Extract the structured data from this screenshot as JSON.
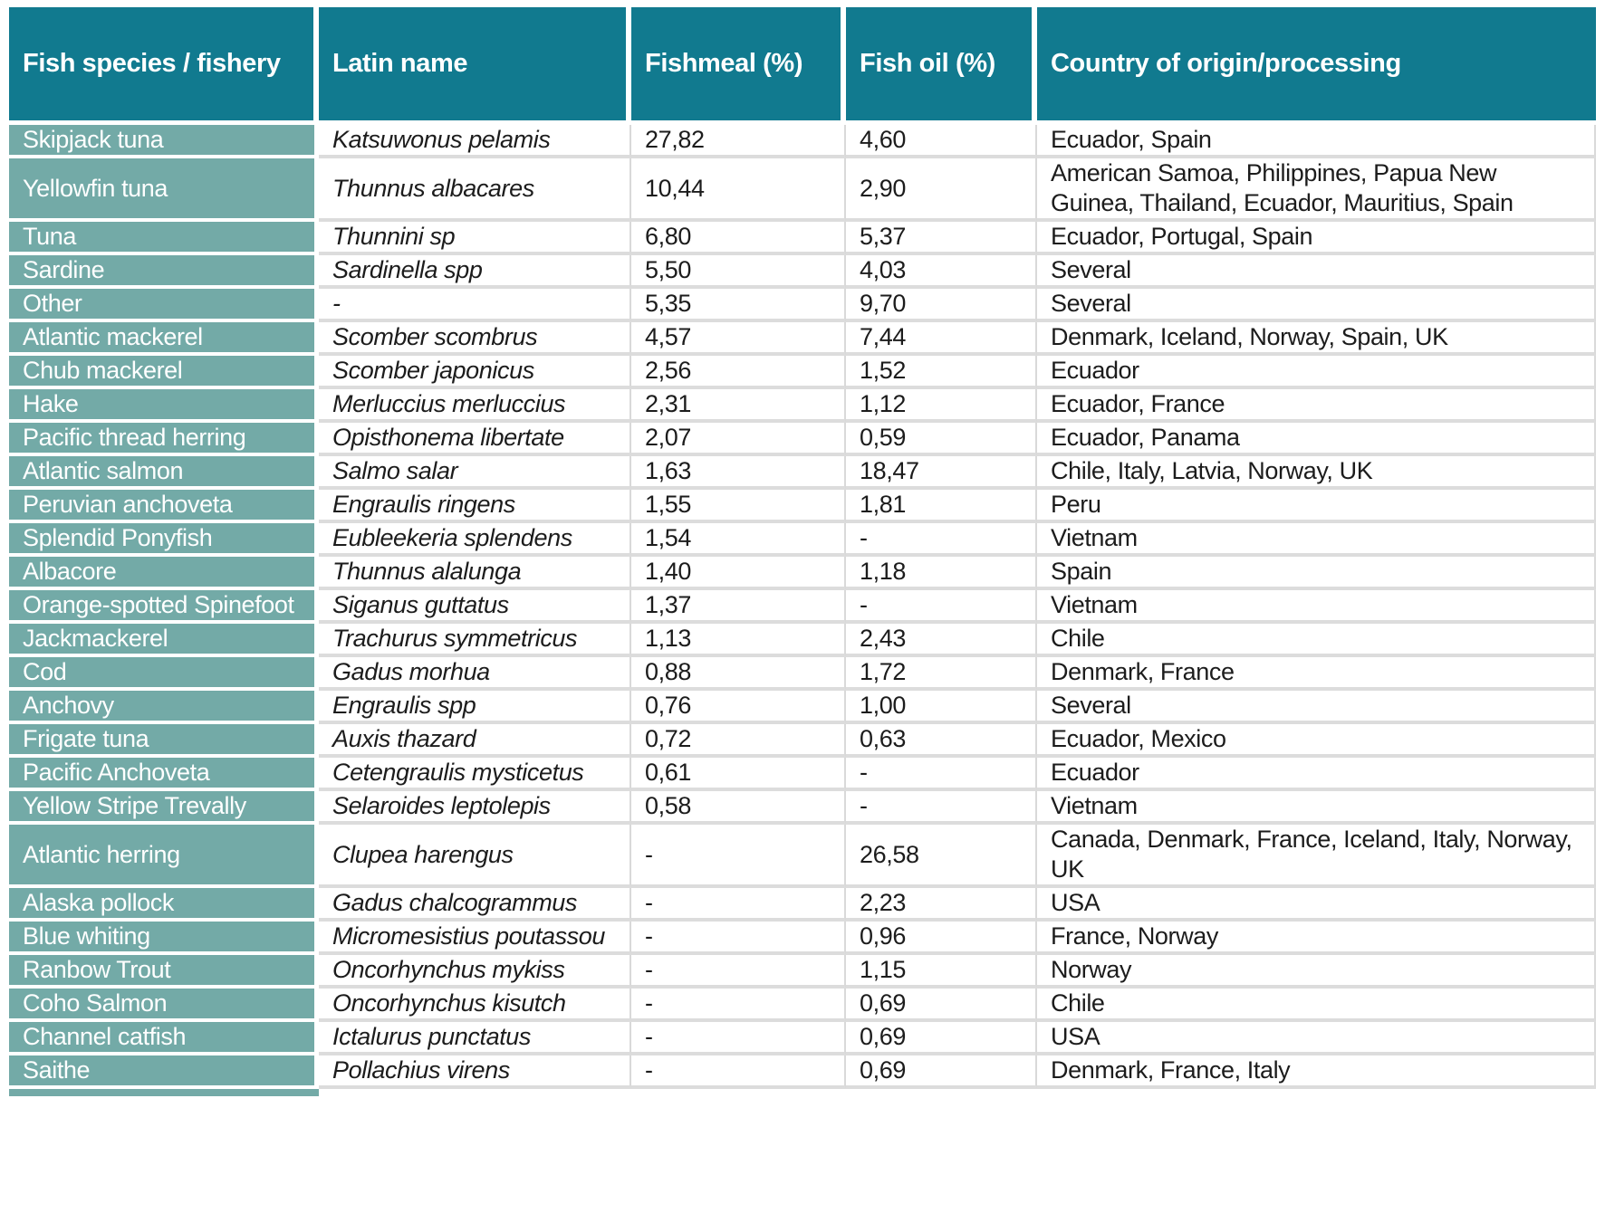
{
  "table": {
    "columns": [
      "Fish species / fishery",
      "Latin name",
      "Fishmeal (%)",
      "Fish oil (%)",
      "Country of origin/processing"
    ],
    "rows": [
      {
        "species": "Skipjack tuna",
        "latin": "Katsuwonus pelamis",
        "fishmeal": "27,82",
        "fishoil": "4,60",
        "countries": "Ecuador, Spain"
      },
      {
        "species": "Yellowfin tuna",
        "latin": "Thunnus albacares",
        "fishmeal": "10,44",
        "fishoil": "2,90",
        "countries": "American Samoa, Philippines, Papua New Guinea, Thailand, Ecuador, Mauritius, Spain"
      },
      {
        "species": "Tuna",
        "latin": "Thunnini sp",
        "fishmeal": "6,80",
        "fishoil": "5,37",
        "countries": "Ecuador, Portugal, Spain"
      },
      {
        "species": "Sardine",
        "latin": "Sardinella spp",
        "fishmeal": "5,50",
        "fishoil": "4,03",
        "countries": "Several"
      },
      {
        "species": "Other",
        "latin": "-",
        "fishmeal": "5,35",
        "fishoil": "9,70",
        "countries": "Several"
      },
      {
        "species": "Atlantic mackerel",
        "latin": "Scomber scombrus",
        "fishmeal": "4,57",
        "fishoil": "7,44",
        "countries": "Denmark, Iceland, Norway, Spain, UK"
      },
      {
        "species": "Chub mackerel",
        "latin": "Scomber japonicus",
        "fishmeal": "2,56",
        "fishoil": "1,52",
        "countries": "Ecuador"
      },
      {
        "species": "Hake",
        "latin": "Merluccius merluccius",
        "fishmeal": "2,31",
        "fishoil": "1,12",
        "countries": "Ecuador, France"
      },
      {
        "species": "Pacific thread herring",
        "latin": "Opisthonema libertate",
        "fishmeal": "2,07",
        "fishoil": "0,59",
        "countries": "Ecuador, Panama"
      },
      {
        "species": "Atlantic salmon",
        "latin": "Salmo salar",
        "fishmeal": "1,63",
        "fishoil": "18,47",
        "countries": "Chile, Italy, Latvia, Norway, UK"
      },
      {
        "species": "Peruvian anchoveta",
        "latin": "Engraulis ringens",
        "fishmeal": "1,55",
        "fishoil": "1,81",
        "countries": "Peru"
      },
      {
        "species": "Splendid Ponyfish",
        "latin": "Eubleekeria splendens",
        "fishmeal": "1,54",
        "fishoil": "-",
        "countries": "Vietnam"
      },
      {
        "species": "Albacore",
        "latin": "Thunnus alalunga",
        "fishmeal": "1,40",
        "fishoil": "1,18",
        "countries": "Spain"
      },
      {
        "species": "Orange-spotted Spinefoot",
        "latin": "Siganus guttatus",
        "fishmeal": "1,37",
        "fishoil": "-",
        "countries": "Vietnam"
      },
      {
        "species": "Jackmackerel",
        "latin": "Trachurus symmetricus",
        "fishmeal": "1,13",
        "fishoil": "2,43",
        "countries": "Chile"
      },
      {
        "species": "Cod",
        "latin": "Gadus morhua",
        "fishmeal": "0,88",
        "fishoil": "1,72",
        "countries": "Denmark, France"
      },
      {
        "species": "Anchovy",
        "latin": "Engraulis spp",
        "fishmeal": "0,76",
        "fishoil": "1,00",
        "countries": "Several"
      },
      {
        "species": "Frigate tuna",
        "latin": "Auxis thazard",
        "fishmeal": "0,72",
        "fishoil": "0,63",
        "countries": "Ecuador, Mexico"
      },
      {
        "species": "Pacific Anchoveta",
        "latin": "Cetengraulis mysticetus",
        "fishmeal": "0,61",
        "fishoil": "-",
        "countries": "Ecuador"
      },
      {
        "species": "Yellow Stripe Trevally",
        "latin": "Selaroides leptolepis",
        "fishmeal": "0,58",
        "fishoil": "-",
        "countries": "Vietnam"
      },
      {
        "species": "Atlantic herring",
        "latin": "Clupea harengus",
        "fishmeal": "-",
        "fishoil": "26,58",
        "countries": "Canada, Denmark, France, Iceland, Italy, Norway, UK"
      },
      {
        "species": "Alaska pollock",
        "latin": "Gadus chalcogrammus",
        "fishmeal": "-",
        "fishoil": "2,23",
        "countries": "USA"
      },
      {
        "species": "Blue whiting",
        "latin": "Micromesistius poutassou",
        "fishmeal": "-",
        "fishoil": "0,96",
        "countries": "France, Norway"
      },
      {
        "species": "Ranbow Trout",
        "latin": "Oncorhynchus mykiss",
        "fishmeal": "-",
        "fishoil": "1,15",
        "countries": "Norway"
      },
      {
        "species": "Coho Salmon",
        "latin": "Oncorhynchus kisutch",
        "fishmeal": "-",
        "fishoil": "0,69",
        "countries": "Chile"
      },
      {
        "species": "Channel catfish",
        "latin": "Ictalurus punctatus",
        "fishmeal": "-",
        "fishoil": "0,69",
        "countries": "USA"
      },
      {
        "species": "Saithe",
        "latin": "Pollachius virens",
        "fishmeal": "-",
        "fishoil": "0,69",
        "countries": "Denmark, France, Italy"
      }
    ]
  },
  "colors": {
    "header_bg": "#117a8f",
    "species_bg": "#73aaa7",
    "row_border": "#dcdcdc",
    "header_text": "#ffffff",
    "body_text": "#1c1c1c"
  }
}
